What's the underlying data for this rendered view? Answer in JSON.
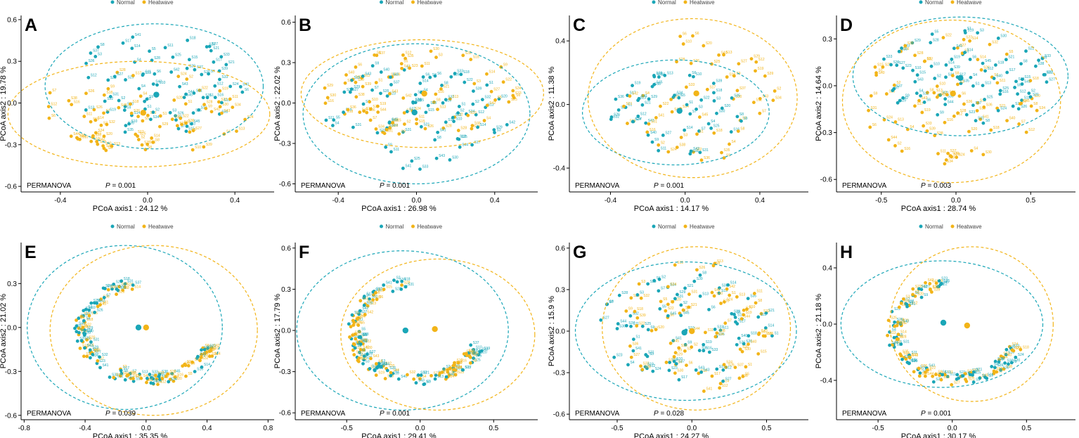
{
  "figure": {
    "colors": {
      "normal": "#1aa6b7",
      "heatwave": "#f2b418",
      "axis": "#000000"
    },
    "legend": {
      "normal_label": "Normal",
      "heatwave_label": "Heatwave"
    },
    "stat_test": "PERMANOVA"
  },
  "chart_data": [
    {
      "panel": "A",
      "type": "scatter",
      "xlabel": "PCoA axis1 : 24.12 %",
      "ylabel": "PCoA axis2 : 19.78 %",
      "xlim": [
        -0.58,
        0.58
      ],
      "ylim": [
        -0.64,
        0.63
      ],
      "xticks": [
        -0.4,
        0.0,
        0.4
      ],
      "xticklabels": [
        "-0.4",
        "0.0",
        "0.4"
      ],
      "yticks": [
        -0.6,
        -0.3,
        0.0,
        0.3,
        0.6
      ],
      "yticklabels": [
        "-0.6",
        "-0.3",
        "0.0",
        "0.3",
        "0.6"
      ],
      "p_label": "P",
      "p_value": "= 0.001",
      "shape": "cloud",
      "n_points": 150,
      "series": [
        {
          "name": "Normal",
          "centroid": [
            0.04,
            0.06
          ],
          "ellipse": {
            "cx": 0.03,
            "cy": 0.12,
            "rx": 0.5,
            "ry": 0.45
          }
        },
        {
          "name": "Heatwave",
          "centroid": [
            -0.02,
            -0.07
          ],
          "ellipse": {
            "cx": -0.04,
            "cy": -0.08,
            "rx": 0.6,
            "ry": 0.38
          }
        }
      ]
    },
    {
      "panel": "B",
      "type": "scatter",
      "xlabel": "PCoA axis1 : 26.98 %",
      "ylabel": "PCoA axis2 : 22.02 %",
      "xlim": [
        -0.62,
        0.62
      ],
      "ylim": [
        -0.66,
        0.65
      ],
      "xticks": [
        -0.4,
        0.0,
        0.4
      ],
      "xticklabels": [
        "-0.4",
        "0.0",
        "0.4"
      ],
      "yticks": [
        -0.6,
        -0.3,
        0.0,
        0.3,
        0.6
      ],
      "yticklabels": [
        "-0.6",
        "-0.3",
        "0.0",
        "0.3",
        "0.6"
      ],
      "p_label": "P",
      "p_value": "= 0.001",
      "shape": "cloud",
      "n_points": 150,
      "series": [
        {
          "name": "Normal",
          "centroid": [
            -0.01,
            -0.07
          ],
          "ellipse": {
            "cx": 0.0,
            "cy": -0.08,
            "rx": 0.58,
            "ry": 0.52
          }
        },
        {
          "name": "Heatwave",
          "centroid": [
            0.04,
            0.07
          ],
          "ellipse": {
            "cx": 0.03,
            "cy": 0.07,
            "rx": 0.62,
            "ry": 0.4
          }
        }
      ]
    },
    {
      "panel": "C",
      "type": "scatter",
      "xlabel": "PCoA axis1 : 14.17 %",
      "ylabel": "PCoA axis2 : 11.38 %",
      "xlim": [
        -0.62,
        0.66
      ],
      "ylim": [
        -0.55,
        0.56
      ],
      "xticks": [
        -0.4,
        0.0,
        0.4
      ],
      "xticklabels": [
        "-0.4",
        "0.0",
        "0.4"
      ],
      "yticks": [
        -0.4,
        0.0,
        0.4
      ],
      "yticklabels": [
        "-0.4",
        "0.0",
        "0.4"
      ],
      "p_label": "P",
      "p_value": "= 0.001",
      "shape": "scatter",
      "n_points": 100,
      "series": [
        {
          "name": "Normal",
          "centroid": [
            -0.03,
            -0.04
          ],
          "ellipse": {
            "cx": -0.05,
            "cy": -0.05,
            "rx": 0.5,
            "ry": 0.33
          }
        },
        {
          "name": "Heatwave",
          "centroid": [
            0.06,
            0.07
          ],
          "ellipse": {
            "cx": 0.04,
            "cy": 0.04,
            "rx": 0.56,
            "ry": 0.5
          }
        }
      ]
    },
    {
      "panel": "D",
      "type": "scatter",
      "xlabel": "PCoA axis1 : 28.74 %",
      "ylabel": "PCoA axis2 : 14.64 %",
      "xlim": [
        -0.8,
        0.8
      ],
      "ylim": [
        -0.68,
        0.45
      ],
      "xticks": [
        -0.5,
        0.0,
        0.5
      ],
      "xticklabels": [
        "-0.5",
        "0.0",
        "0.5"
      ],
      "yticks": [
        -0.6,
        -0.3,
        0.0,
        0.3
      ],
      "yticklabels": [
        "-0.6",
        "-0.3",
        "0.0",
        "0.3"
      ],
      "p_label": "P",
      "p_value": "= 0.003",
      "shape": "cloud",
      "n_points": 150,
      "series": [
        {
          "name": "Normal",
          "centroid": [
            0.03,
            0.05
          ],
          "ellipse": {
            "cx": 0.03,
            "cy": 0.06,
            "rx": 0.72,
            "ry": 0.38
          }
        },
        {
          "name": "Heatwave",
          "centroid": [
            -0.02,
            -0.05
          ],
          "ellipse": {
            "cx": -0.03,
            "cy": -0.1,
            "rx": 0.73,
            "ry": 0.52
          }
        }
      ]
    },
    {
      "panel": "E",
      "type": "scatter",
      "xlabel": "PCoA axis1 : 35.35 %",
      "ylabel": "PCoA axis2 : 21.02 %",
      "xlim": [
        -0.82,
        0.84
      ],
      "ylim": [
        -0.63,
        0.58
      ],
      "xticks": [
        -0.8,
        -0.4,
        0.0,
        0.4,
        0.8
      ],
      "xticklabels": [
        "-0.8",
        "-0.4",
        "0.0",
        "0.4",
        "0.8"
      ],
      "yticks": [
        -0.6,
        -0.3,
        0.0,
        0.3
      ],
      "yticklabels": [
        "-0.6",
        "-0.3",
        "0.0",
        "0.3"
      ],
      "p_label": "P",
      "p_value": "= 0.039",
      "shape": "arc",
      "n_points": 130,
      "series": [
        {
          "name": "Normal",
          "centroid": [
            -0.05,
            0.0
          ],
          "ellipse": {
            "cx": -0.14,
            "cy": 0.0,
            "rx": 0.64,
            "ry": 0.56
          }
        },
        {
          "name": "Heatwave",
          "centroid": [
            0.0,
            0.0
          ],
          "ellipse": {
            "cx": 0.05,
            "cy": -0.02,
            "rx": 0.68,
            "ry": 0.58
          }
        }
      ]
    },
    {
      "panel": "F",
      "type": "scatter",
      "xlabel": "PCoA axis1 : 29.41 %",
      "ylabel": "PCoA axis2 : 17.79 %",
      "xlim": [
        -0.85,
        0.8
      ],
      "ylim": [
        -0.65,
        0.64
      ],
      "xticks": [
        -0.5,
        0.0,
        0.5
      ],
      "xticklabels": [
        "-0.5",
        "0.0",
        "0.5"
      ],
      "yticks": [
        -0.6,
        -0.3,
        0.0,
        0.3,
        0.6
      ],
      "yticklabels": [
        "-0.6",
        "-0.3",
        "0.0",
        "0.3",
        "0.6"
      ],
      "p_label": "P",
      "p_value": "= 0.001",
      "shape": "arc",
      "n_points": 140,
      "series": [
        {
          "name": "Normal",
          "centroid": [
            -0.1,
            0.0
          ],
          "ellipse": {
            "cx": -0.12,
            "cy": 0.0,
            "rx": 0.72,
            "ry": 0.58
          }
        },
        {
          "name": "Heatwave",
          "centroid": [
            0.1,
            0.01
          ],
          "ellipse": {
            "cx": 0.12,
            "cy": -0.03,
            "rx": 0.66,
            "ry": 0.55
          }
        }
      ]
    },
    {
      "panel": "G",
      "type": "scatter",
      "xlabel": "PCoA axis1 : 24.27 %",
      "ylabel": "PCoA axis2 : 15.9 %",
      "xlim": [
        -0.82,
        0.78
      ],
      "ylim": [
        -0.64,
        0.64
      ],
      "xticks": [
        -0.5,
        0.0,
        0.5
      ],
      "xticklabels": [
        "-0.5",
        "0.0",
        "0.5"
      ],
      "yticks": [
        -0.6,
        -0.3,
        0.0,
        0.3,
        0.6
      ],
      "yticklabels": [
        "-0.6",
        "-0.3",
        "0.0",
        "0.3",
        "0.6"
      ],
      "p_label": "P",
      "p_value": "= 0.028",
      "shape": "cloud",
      "n_points": 150,
      "series": [
        {
          "name": "Normal",
          "centroid": [
            -0.05,
            -0.01
          ],
          "ellipse": {
            "cx": -0.04,
            "cy": 0.0,
            "rx": 0.74,
            "ry": 0.5
          }
        },
        {
          "name": "Heatwave",
          "centroid": [
            0.0,
            0.0
          ],
          "ellipse": {
            "cx": 0.03,
            "cy": 0.02,
            "rx": 0.63,
            "ry": 0.59
          }
        }
      ]
    },
    {
      "panel": "H",
      "type": "scatter",
      "xlabel": "PCoA axis1 : 30.17 %",
      "ylabel": "PCoA axis2 : 21.18 %",
      "xlim": [
        -0.78,
        0.83
      ],
      "ylim": [
        -0.68,
        0.58
      ],
      "xticks": [
        -0.5,
        0.0,
        0.5
      ],
      "xticklabels": [
        "-0.5",
        "0.0",
        "0.5"
      ],
      "yticks": [
        -0.4,
        0.0,
        0.4
      ],
      "yticklabels": [
        "-0.4",
        "0.0",
        "0.4"
      ],
      "p_label": "P",
      "p_value": "= 0.001",
      "shape": "arc",
      "n_points": 120,
      "series": [
        {
          "name": "Normal",
          "centroid": [
            -0.06,
            0.01
          ],
          "ellipse": {
            "cx": -0.07,
            "cy": 0.0,
            "rx": 0.68,
            "ry": 0.45
          }
        },
        {
          "name": "Heatwave",
          "centroid": [
            0.1,
            -0.01
          ],
          "ellipse": {
            "cx": 0.13,
            "cy": 0.0,
            "rx": 0.55,
            "ry": 0.55
          }
        }
      ]
    }
  ]
}
